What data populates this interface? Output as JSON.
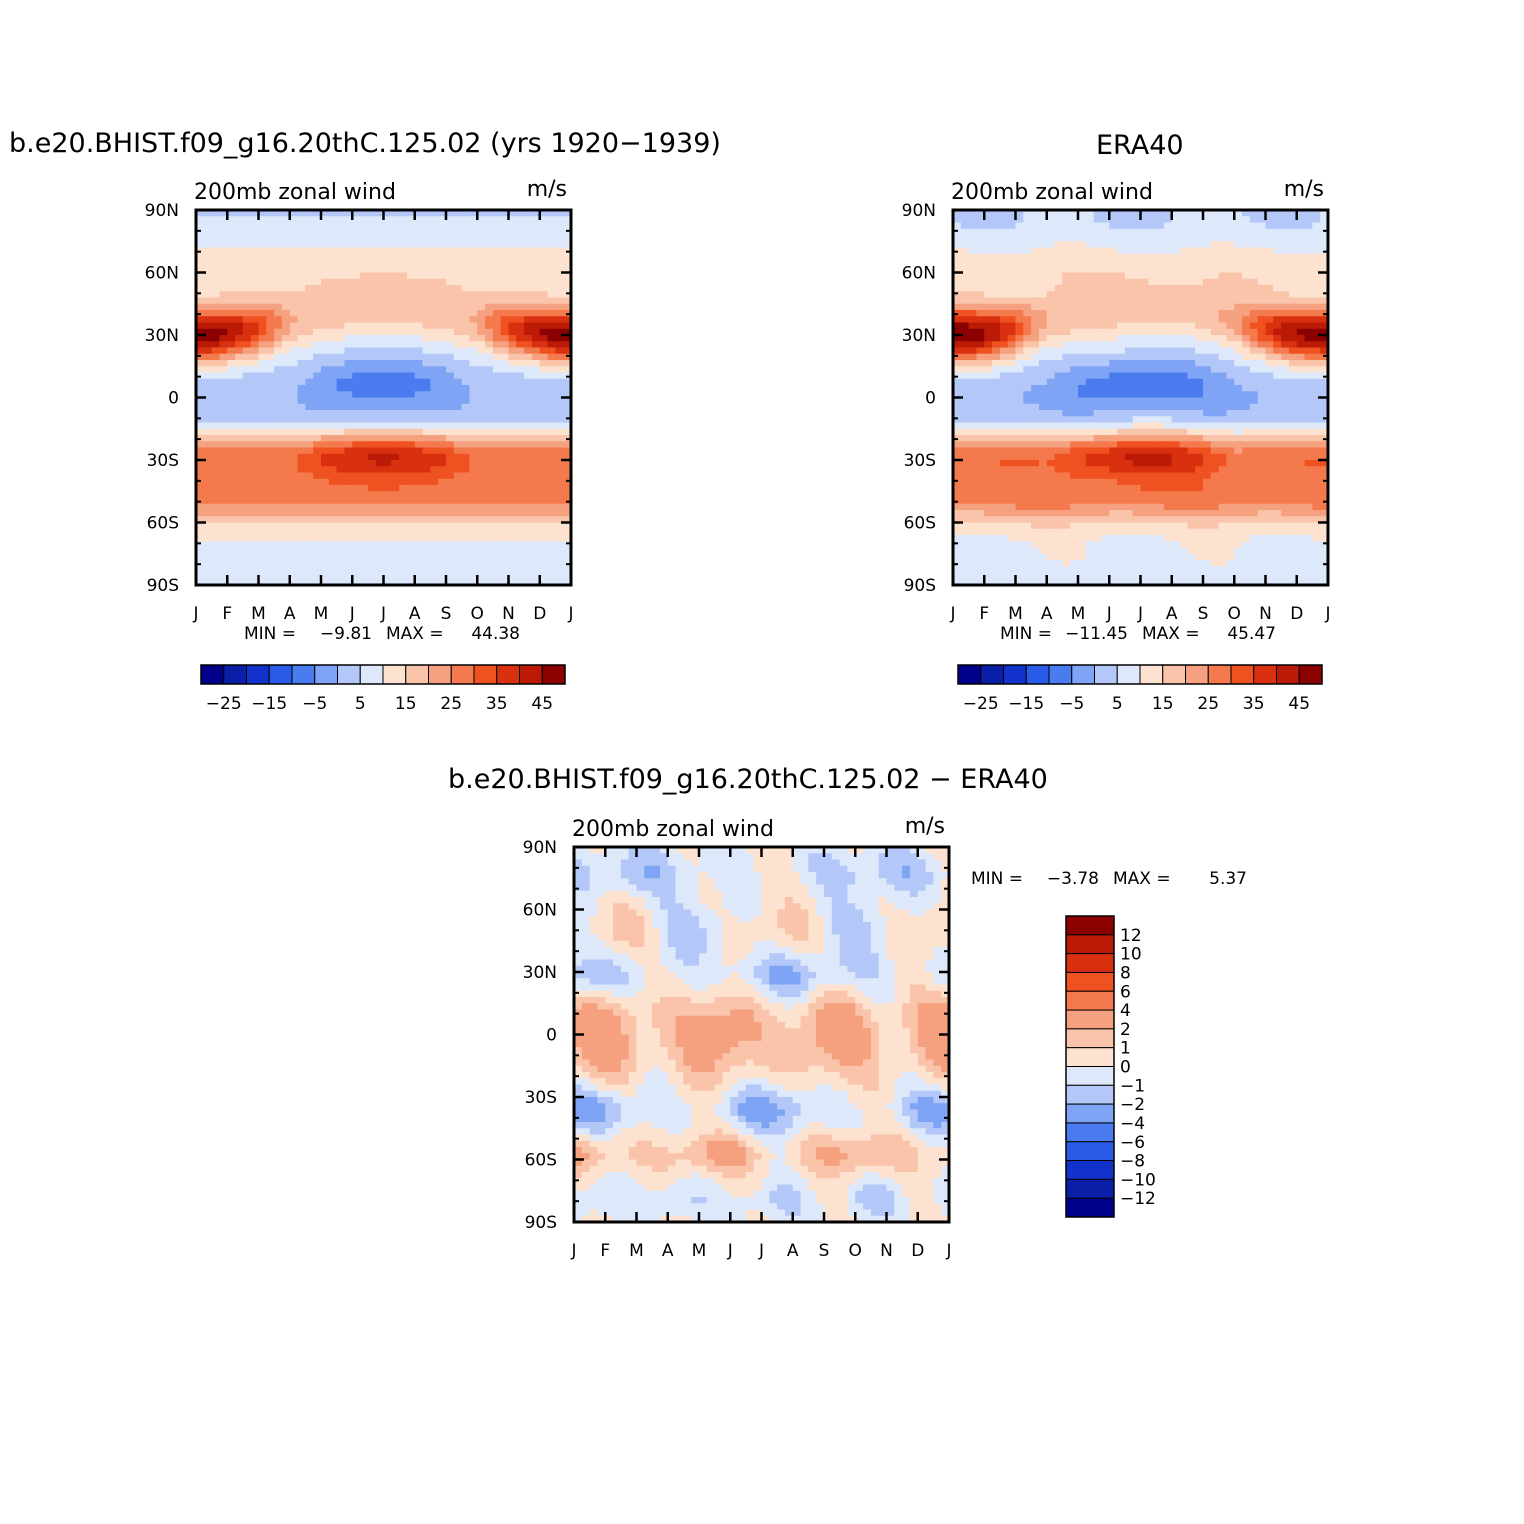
{
  "titles": {
    "model": "b.e20.BHIST.f09_g16.20thC.125.02 (yrs 1920−1939)",
    "obs": "ERA40",
    "diff": "b.e20.BHIST.f09_g16.20thC.125.02 − ERA40"
  },
  "palette": {
    "blues": [
      "#00008b",
      "#0a1fa8",
      "#1133cc",
      "#2a5ae8",
      "#4a7cf0",
      "#7fa4f5",
      "#b3c8f8",
      "#dde9fb"
    ],
    "reds": [
      "#fde2d0",
      "#f9c4aa",
      "#f5a07e",
      "#f47a4e",
      "#ef5120",
      "#d93010",
      "#bb1a06",
      "#8b0000"
    ]
  },
  "chart_data": [
    {
      "type": "heatmap",
      "name": "model",
      "subtitle": "200mb zonal wind",
      "units": "m/s",
      "x": [
        "J",
        "F",
        "M",
        "A",
        "M",
        "J",
        "J",
        "A",
        "S",
        "O",
        "N",
        "D",
        "J"
      ],
      "y_ticks": [
        "90N",
        "60N",
        "30N",
        "0",
        "30S",
        "60S",
        "90S"
      ],
      "ylim": [
        -90,
        90
      ],
      "stats": {
        "min_label": "MIN =",
        "min": "−9.81",
        "max_label": "MAX =",
        "max": "44.38"
      },
      "colorbar": {
        "orientation": "horizontal",
        "tick_labels": [
          "−25",
          "−15",
          "−5",
          "5",
          "15",
          "25",
          "35",
          "45"
        ]
      }
    },
    {
      "type": "heatmap",
      "name": "obs",
      "subtitle": "200mb zonal wind",
      "units": "m/s",
      "x": [
        "J",
        "F",
        "M",
        "A",
        "M",
        "J",
        "J",
        "A",
        "S",
        "O",
        "N",
        "D",
        "J"
      ],
      "y_ticks": [
        "90N",
        "60N",
        "30N",
        "0",
        "30S",
        "60S",
        "90S"
      ],
      "ylim": [
        -90,
        90
      ],
      "stats": {
        "min_label": "MIN =",
        "min": "−11.45",
        "max_label": "MAX =",
        "max": "45.47"
      },
      "colorbar": {
        "orientation": "horizontal",
        "tick_labels": [
          "−25",
          "−15",
          "−5",
          "5",
          "15",
          "25",
          "35",
          "45"
        ]
      }
    },
    {
      "type": "heatmap",
      "name": "diff",
      "subtitle": "200mb zonal wind",
      "units": "m/s",
      "x": [
        "J",
        "F",
        "M",
        "A",
        "M",
        "J",
        "J",
        "A",
        "S",
        "O",
        "N",
        "D",
        "J"
      ],
      "y_ticks": [
        "90N",
        "60N",
        "30N",
        "0",
        "30S",
        "60S",
        "90S"
      ],
      "ylim": [
        -90,
        90
      ],
      "stats": {
        "min_label": "MIN =",
        "min": "−3.78",
        "max_label": "MAX =",
        "max": "5.37"
      },
      "colorbar": {
        "orientation": "vertical",
        "tick_labels": [
          "12",
          "10",
          "8",
          "6",
          "4",
          "2",
          "1",
          "0",
          "−1",
          "−2",
          "−4",
          "−6",
          "−8",
          "−10",
          "−12"
        ]
      }
    }
  ]
}
